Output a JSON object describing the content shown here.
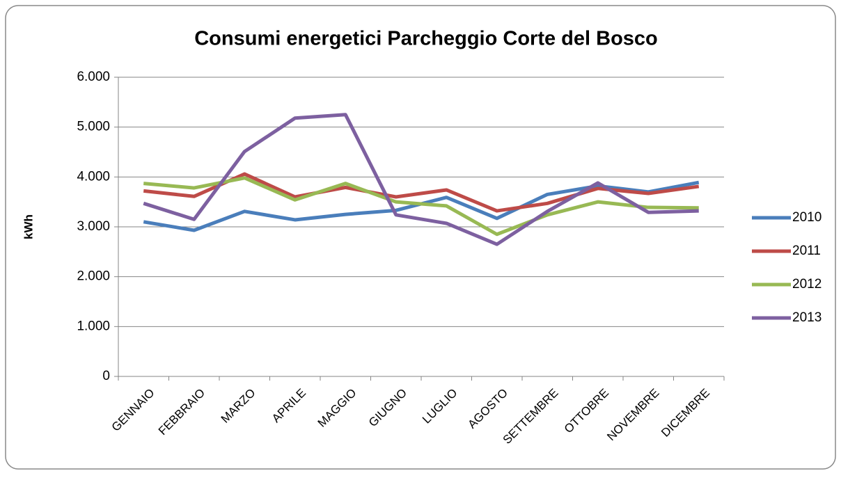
{
  "chart_data": {
    "type": "line",
    "title": "Consumi energetici Parcheggio Corte del Bosco",
    "y_label": "kWh",
    "categories": [
      "GENNAIO",
      "FEBBRAIO",
      "MARZO",
      "APRILE",
      "MAGGIO",
      "GIUGNO",
      "LUGLIO",
      "AGOSTO",
      "SETTEMBRE",
      "OTTOBRE",
      "NOVEMBRE",
      "DICEMBRE"
    ],
    "series": [
      {
        "name": "2010",
        "color": "#4a7ebb",
        "values": [
          3100,
          2930,
          3310,
          3140,
          3250,
          3330,
          3590,
          3170,
          3650,
          3820,
          3700,
          3890
        ]
      },
      {
        "name": "2011",
        "color": "#be4b48",
        "values": [
          3720,
          3610,
          4060,
          3600,
          3790,
          3600,
          3740,
          3320,
          3470,
          3770,
          3670,
          3810
        ]
      },
      {
        "name": "2012",
        "color": "#98b954",
        "values": [
          3870,
          3780,
          3980,
          3540,
          3870,
          3500,
          3420,
          2850,
          3240,
          3500,
          3390,
          3380
        ]
      },
      {
        "name": "2013",
        "color": "#7d60a0",
        "values": [
          3470,
          3150,
          4510,
          5180,
          5250,
          3240,
          3070,
          2650,
          3310,
          3880,
          3290,
          3320
        ]
      }
    ],
    "ylim": [
      0,
      6000
    ],
    "yticks": [
      0,
      {
        "value": 1000,
        "label": "1.000"
      },
      {
        "value": 2000,
        "label": "2.000"
      },
      {
        "value": 3000,
        "label": "3.000"
      },
      {
        "value": 4000,
        "label": "4.000"
      },
      {
        "value": 5000,
        "label": "5.000"
      },
      {
        "value": 6000,
        "label": "6.000"
      }
    ],
    "grid": true,
    "legend": "right"
  }
}
